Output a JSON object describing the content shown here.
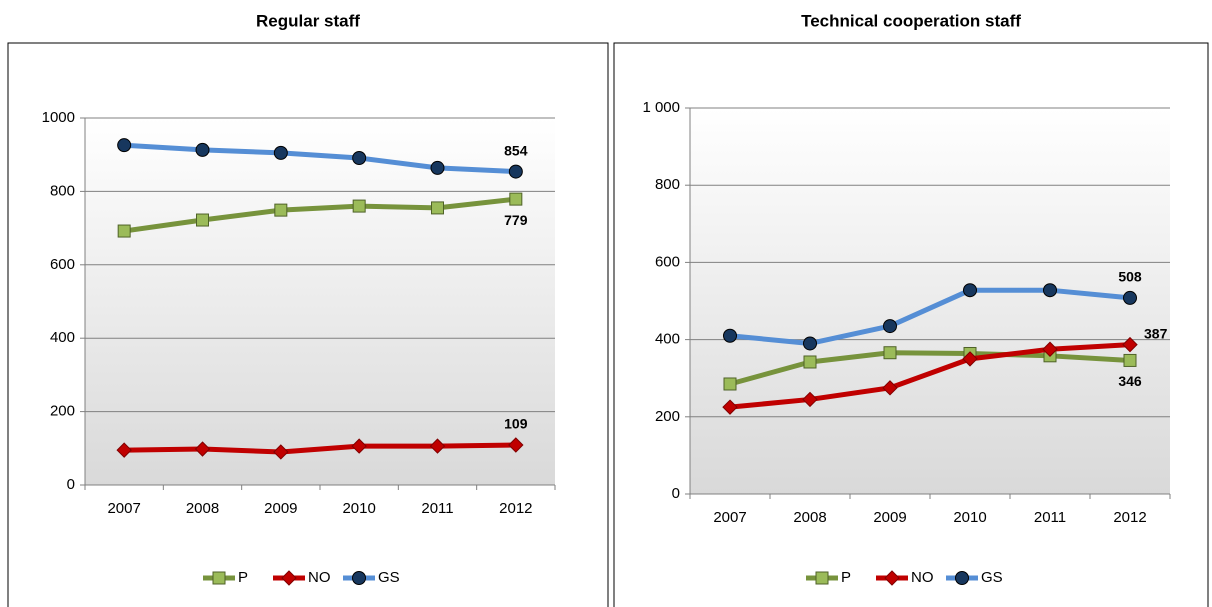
{
  "chart_data": [
    {
      "type": "line",
      "title": "Regular staff",
      "categories": [
        "2007",
        "2008",
        "2009",
        "2010",
        "2011",
        "2012"
      ],
      "ylim": [
        0,
        1000
      ],
      "yticks": [
        0,
        200,
        400,
        600,
        800,
        1000
      ],
      "grid": true,
      "legend": "bottom",
      "series": [
        {
          "name": "P",
          "color": "#77933c",
          "marker": "square",
          "marker_color": "#9bbb59",
          "values": [
            692,
            722,
            749,
            760,
            755,
            779
          ],
          "value_labels": [
            null,
            null,
            null,
            null,
            null,
            "779"
          ]
        },
        {
          "name": "NO",
          "color": "#c00000",
          "marker": "diamond",
          "marker_color": "#c00000",
          "values": [
            95,
            98,
            90,
            106,
            106,
            109
          ],
          "value_labels": [
            null,
            null,
            null,
            null,
            null,
            "109"
          ]
        },
        {
          "name": "GS",
          "color": "#558ed5",
          "marker": "circle",
          "marker_color": "#17375e",
          "values": [
            926,
            913,
            905,
            891,
            864,
            854
          ],
          "value_labels": [
            null,
            null,
            null,
            null,
            null,
            "854"
          ]
        }
      ]
    },
    {
      "type": "line",
      "title": "Technical cooperation staff",
      "categories": [
        "2007",
        "2008",
        "2009",
        "2010",
        "2011",
        "2012"
      ],
      "ylim": [
        0,
        1000
      ],
      "yticks": [
        0,
        200,
        400,
        600,
        800,
        {
          "value": 1000,
          "label": "1 000"
        }
      ],
      "grid": true,
      "legend": "bottom",
      "series": [
        {
          "name": "P",
          "color": "#77933c",
          "marker": "square",
          "marker_color": "#9bbb59",
          "values": [
            285,
            342,
            366,
            364,
            358,
            346
          ],
          "value_labels": [
            null,
            null,
            null,
            null,
            null,
            "346"
          ]
        },
        {
          "name": "NO",
          "color": "#c00000",
          "marker": "diamond",
          "marker_color": "#c00000",
          "values": [
            225,
            245,
            275,
            350,
            375,
            387
          ],
          "value_labels": [
            null,
            null,
            null,
            null,
            null,
            "387"
          ]
        },
        {
          "name": "GS",
          "color": "#558ed5",
          "marker": "circle",
          "marker_color": "#17375e",
          "values": [
            410,
            390,
            435,
            528,
            528,
            508
          ],
          "value_labels": [
            null,
            null,
            null,
            null,
            null,
            "508"
          ]
        }
      ]
    }
  ]
}
